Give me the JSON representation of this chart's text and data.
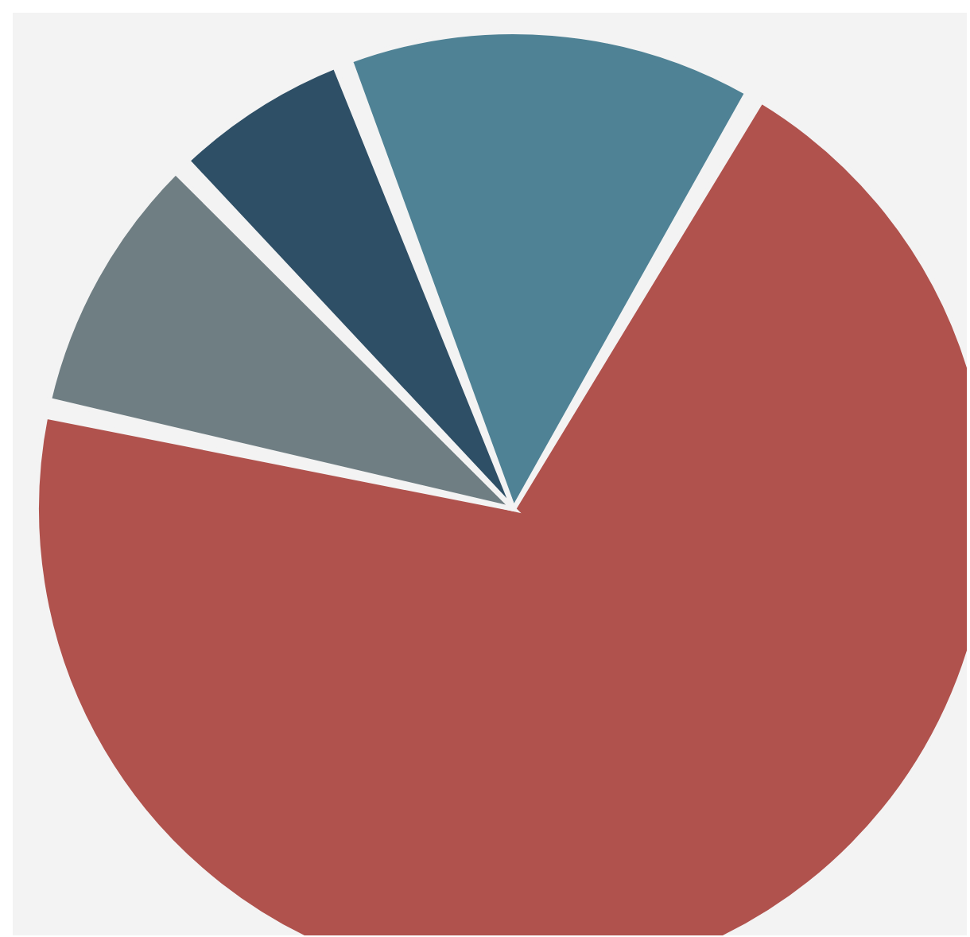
{
  "chart_data": {
    "type": "pie",
    "categories": [
      null,
      null,
      null,
      null
    ],
    "values": [
      14,
      71,
      9,
      6
    ],
    "colors": [
      "#4f8295",
      "#b0524d",
      "#6f7e83",
      "#2e4f66"
    ]
  }
}
